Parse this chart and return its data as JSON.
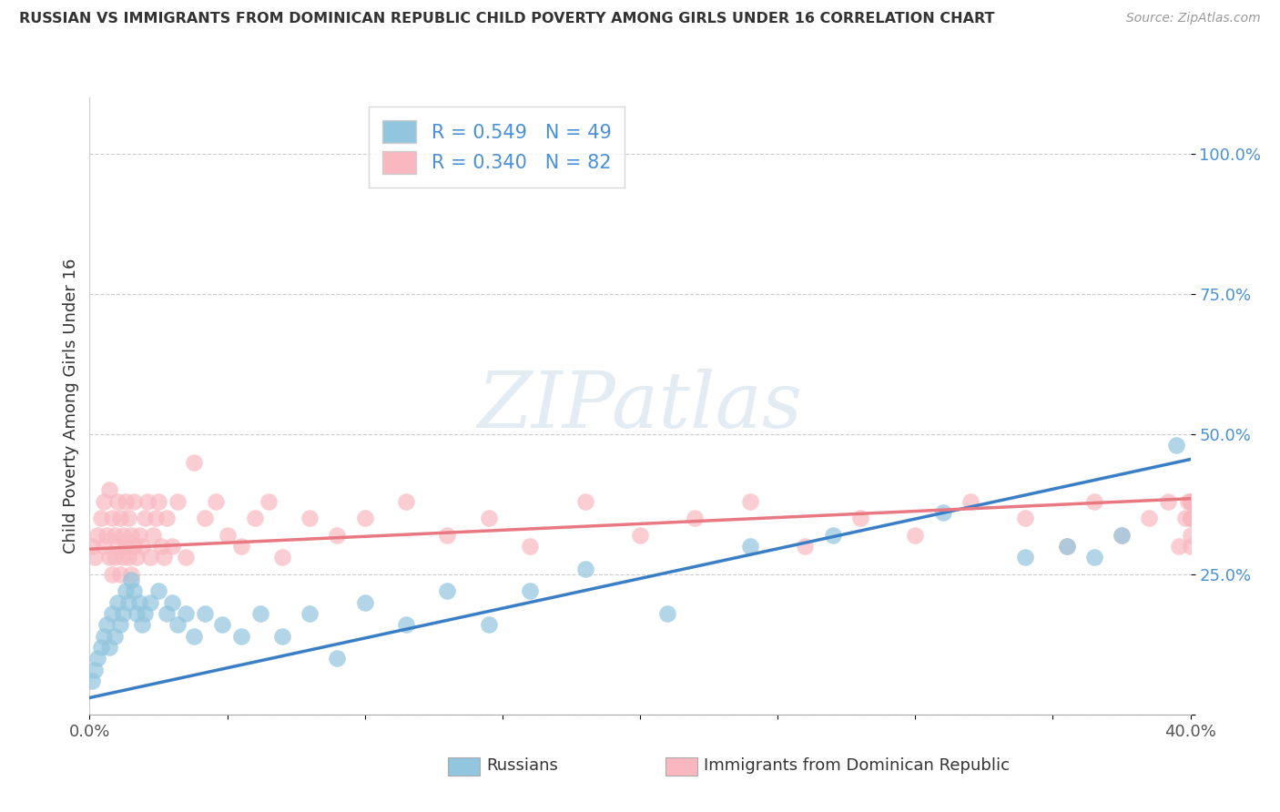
{
  "title": "RUSSIAN VS IMMIGRANTS FROM DOMINICAN REPUBLIC CHILD POVERTY AMONG GIRLS UNDER 16 CORRELATION CHART",
  "source": "Source: ZipAtlas.com",
  "ylabel": "Child Poverty Among Girls Under 16",
  "xlim": [
    0.0,
    0.4
  ],
  "ylim": [
    0.0,
    1.1
  ],
  "ytick_vals": [
    0.0,
    0.25,
    0.5,
    0.75,
    1.0
  ],
  "ytick_labels": [
    "",
    "25.0%",
    "50.0%",
    "75.0%",
    "100.0%"
  ],
  "xtick_vals": [
    0.0,
    0.05,
    0.1,
    0.15,
    0.2,
    0.25,
    0.3,
    0.35,
    0.4
  ],
  "xtick_labels": [
    "0.0%",
    "",
    "",
    "",
    "",
    "",
    "",
    "",
    "40.0%"
  ],
  "legend_russian_R": "0.549",
  "legend_russian_N": "49",
  "legend_dr_R": "0.340",
  "legend_dr_N": "82",
  "color_russian": "#92C5DE",
  "color_dr": "#F9B8C0",
  "color_russian_line": "#3A7EC6",
  "color_dr_line": "#E87882",
  "watermark_text": "ZIPatlas",
  "rus_line_x0": 0.0,
  "rus_line_y0": 0.03,
  "rus_line_x1": 0.4,
  "rus_line_y1": 0.455,
  "dr_line_x0": 0.0,
  "dr_line_y0": 0.295,
  "dr_line_x1": 0.4,
  "dr_line_y1": 0.385,
  "russians_x": [
    0.001,
    0.002,
    0.003,
    0.004,
    0.005,
    0.006,
    0.007,
    0.008,
    0.009,
    0.01,
    0.011,
    0.012,
    0.013,
    0.014,
    0.015,
    0.016,
    0.017,
    0.018,
    0.019,
    0.02,
    0.022,
    0.025,
    0.028,
    0.03,
    0.032,
    0.035,
    0.038,
    0.042,
    0.048,
    0.055,
    0.062,
    0.07,
    0.08,
    0.09,
    0.1,
    0.115,
    0.13,
    0.145,
    0.16,
    0.18,
    0.21,
    0.24,
    0.27,
    0.31,
    0.34,
    0.355,
    0.365,
    0.375,
    0.395
  ],
  "russians_y": [
    0.06,
    0.08,
    0.1,
    0.12,
    0.14,
    0.16,
    0.12,
    0.18,
    0.14,
    0.2,
    0.16,
    0.18,
    0.22,
    0.2,
    0.24,
    0.22,
    0.18,
    0.2,
    0.16,
    0.18,
    0.2,
    0.22,
    0.18,
    0.2,
    0.16,
    0.18,
    0.14,
    0.18,
    0.16,
    0.14,
    0.18,
    0.14,
    0.18,
    0.1,
    0.2,
    0.16,
    0.22,
    0.16,
    0.22,
    0.26,
    0.18,
    0.3,
    0.32,
    0.36,
    0.28,
    0.3,
    0.28,
    0.32,
    0.48
  ],
  "dr_x": [
    0.001,
    0.002,
    0.003,
    0.004,
    0.005,
    0.005,
    0.006,
    0.007,
    0.007,
    0.008,
    0.008,
    0.009,
    0.009,
    0.01,
    0.01,
    0.011,
    0.011,
    0.012,
    0.012,
    0.013,
    0.013,
    0.014,
    0.014,
    0.015,
    0.015,
    0.016,
    0.016,
    0.017,
    0.018,
    0.019,
    0.02,
    0.021,
    0.022,
    0.023,
    0.024,
    0.025,
    0.026,
    0.027,
    0.028,
    0.03,
    0.032,
    0.035,
    0.038,
    0.042,
    0.046,
    0.05,
    0.055,
    0.06,
    0.065,
    0.07,
    0.08,
    0.09,
    0.1,
    0.115,
    0.13,
    0.145,
    0.16,
    0.18,
    0.2,
    0.22,
    0.24,
    0.26,
    0.28,
    0.3,
    0.32,
    0.34,
    0.355,
    0.365,
    0.375,
    0.385,
    0.392,
    0.396,
    0.398,
    0.399,
    0.4,
    0.4,
    0.4,
    0.4,
    0.4,
    0.4,
    0.4,
    0.4
  ],
  "dr_y": [
    0.3,
    0.28,
    0.32,
    0.35,
    0.3,
    0.38,
    0.32,
    0.28,
    0.4,
    0.25,
    0.35,
    0.28,
    0.32,
    0.3,
    0.38,
    0.25,
    0.35,
    0.28,
    0.32,
    0.3,
    0.38,
    0.28,
    0.35,
    0.25,
    0.32,
    0.3,
    0.38,
    0.28,
    0.32,
    0.3,
    0.35,
    0.38,
    0.28,
    0.32,
    0.35,
    0.38,
    0.3,
    0.28,
    0.35,
    0.3,
    0.38,
    0.28,
    0.45,
    0.35,
    0.38,
    0.32,
    0.3,
    0.35,
    0.38,
    0.28,
    0.35,
    0.32,
    0.35,
    0.38,
    0.32,
    0.35,
    0.3,
    0.38,
    0.32,
    0.35,
    0.38,
    0.3,
    0.35,
    0.32,
    0.38,
    0.35,
    0.3,
    0.38,
    0.32,
    0.35,
    0.38,
    0.3,
    0.35,
    0.38,
    0.35,
    0.38,
    0.3,
    0.35,
    0.38,
    0.32,
    0.38,
    0.35
  ]
}
